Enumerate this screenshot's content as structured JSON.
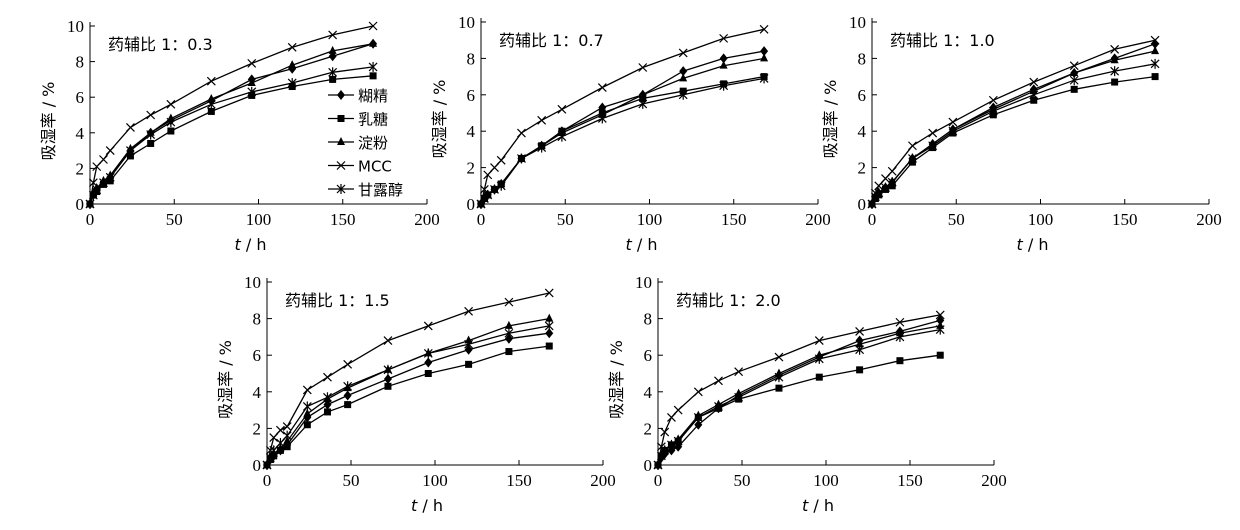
{
  "chart_data": [
    {
      "type": "line",
      "title": "药辅比 1：0.3",
      "xlabel_var": "t",
      "xlabel_unit": "/ h",
      "ylabel": "吸湿率 / %",
      "xlim": [
        0,
        200
      ],
      "ylim": [
        0,
        10
      ],
      "xticks": [
        0,
        50,
        100,
        150,
        200
      ],
      "yticks": [
        0,
        2,
        4,
        6,
        8,
        10
      ],
      "x": [
        0,
        2,
        4,
        8,
        12,
        24,
        36,
        48,
        72,
        96,
        120,
        144,
        168
      ],
      "legend": true,
      "series": [
        {
          "name": "糊精",
          "marker": "diamond",
          "values": [
            0,
            0.6,
            0.8,
            1.2,
            1.5,
            3.0,
            4.0,
            4.7,
            5.8,
            7.0,
            7.6,
            8.3,
            9.0
          ]
        },
        {
          "name": "乳糖",
          "marker": "square",
          "values": [
            0,
            0.5,
            0.7,
            1.1,
            1.3,
            2.7,
            3.4,
            4.1,
            5.2,
            6.1,
            6.6,
            7.0,
            7.2
          ]
        },
        {
          "name": "淀粉",
          "marker": "triangle",
          "values": [
            0,
            0.6,
            0.9,
            1.3,
            1.6,
            3.1,
            4.0,
            4.8,
            5.9,
            6.8,
            7.8,
            8.6,
            9.0
          ]
        },
        {
          "name": "MCC",
          "marker": "x",
          "values": [
            0,
            1.2,
            2.1,
            2.5,
            3.0,
            4.3,
            5.0,
            5.6,
            6.9,
            7.9,
            8.8,
            9.5,
            10.0
          ]
        },
        {
          "name": "甘露醇",
          "marker": "star",
          "values": [
            0,
            0.5,
            0.8,
            1.2,
            1.5,
            3.0,
            3.9,
            4.6,
            5.6,
            6.3,
            6.8,
            7.4,
            7.7
          ]
        }
      ]
    },
    {
      "type": "line",
      "title": "药辅比 1：0.7",
      "xlabel_var": "t",
      "xlabel_unit": "/ h",
      "ylabel": "吸湿率 / %",
      "xlim": [
        0,
        200
      ],
      "ylim": [
        0,
        10
      ],
      "xticks": [
        0,
        50,
        100,
        150,
        200
      ],
      "yticks": [
        0,
        2,
        4,
        6,
        8,
        10
      ],
      "x": [
        0,
        2,
        4,
        8,
        12,
        24,
        36,
        48,
        72,
        96,
        120,
        144,
        168
      ],
      "legend": false,
      "series": [
        {
          "name": "糊精",
          "marker": "diamond",
          "values": [
            0,
            0.3,
            0.5,
            0.8,
            1.1,
            2.5,
            3.2,
            4.0,
            5.3,
            6.0,
            7.3,
            8.0,
            8.4
          ]
        },
        {
          "name": "乳糖",
          "marker": "square",
          "values": [
            0,
            0.3,
            0.5,
            0.8,
            1.1,
            2.5,
            3.2,
            4.0,
            5.0,
            5.8,
            6.2,
            6.6,
            7.0
          ]
        },
        {
          "name": "淀粉",
          "marker": "triangle",
          "values": [
            0,
            0.3,
            0.5,
            0.8,
            1.1,
            2.5,
            3.2,
            3.9,
            4.9,
            6.0,
            6.9,
            7.6,
            8.0
          ]
        },
        {
          "name": "MCC",
          "marker": "x",
          "values": [
            0,
            0.8,
            1.6,
            2.0,
            2.4,
            3.9,
            4.6,
            5.2,
            6.4,
            7.5,
            8.3,
            9.1,
            9.6
          ]
        },
        {
          "name": "甘露醇",
          "marker": "star",
          "values": [
            0,
            0.3,
            0.5,
            0.8,
            1.0,
            2.5,
            3.1,
            3.7,
            4.7,
            5.5,
            6.0,
            6.5,
            6.9
          ]
        }
      ]
    },
    {
      "type": "line",
      "title": "药辅比 1：1.0",
      "xlabel_var": "t",
      "xlabel_unit": "/ h",
      "ylabel": "吸湿率 / %",
      "xlim": [
        0,
        200
      ],
      "ylim": [
        0,
        10
      ],
      "xticks": [
        0,
        50,
        100,
        150,
        200
      ],
      "yticks": [
        0,
        2,
        4,
        6,
        8,
        10
      ],
      "x": [
        0,
        2,
        4,
        8,
        12,
        24,
        36,
        48,
        72,
        96,
        120,
        144,
        168
      ],
      "legend": false,
      "series": [
        {
          "name": "糊精",
          "marker": "diamond",
          "values": [
            0,
            0.4,
            0.6,
            0.9,
            1.2,
            2.5,
            3.3,
            4.1,
            5.3,
            6.3,
            7.2,
            8.0,
            8.8
          ]
        },
        {
          "name": "乳糖",
          "marker": "square",
          "values": [
            0,
            0.3,
            0.5,
            0.8,
            1.0,
            2.3,
            3.1,
            3.9,
            4.9,
            5.7,
            6.3,
            6.7,
            7.0
          ]
        },
        {
          "name": "淀粉",
          "marker": "triangle",
          "values": [
            0,
            0.4,
            0.6,
            0.9,
            1.2,
            2.5,
            3.3,
            4.1,
            5.2,
            6.2,
            7.2,
            7.9,
            8.4
          ]
        },
        {
          "name": "MCC",
          "marker": "x",
          "values": [
            0,
            0.6,
            1.0,
            1.4,
            1.8,
            3.2,
            3.9,
            4.5,
            5.7,
            6.7,
            7.6,
            8.5,
            9.0
          ]
        },
        {
          "name": "甘露醇",
          "marker": "star",
          "values": [
            0,
            0.4,
            0.6,
            0.9,
            1.2,
            2.5,
            3.2,
            4.0,
            5.1,
            6.0,
            6.8,
            7.3,
            7.7
          ]
        }
      ]
    },
    {
      "type": "line",
      "title": "药辅比 1：1.5",
      "xlabel_var": "t",
      "xlabel_unit": "/ h",
      "ylabel": "吸湿率 / %",
      "xlim": [
        0,
        200
      ],
      "ylim": [
        0,
        10
      ],
      "xticks": [
        0,
        50,
        100,
        150,
        200
      ],
      "yticks": [
        0,
        2,
        4,
        6,
        8,
        10
      ],
      "x": [
        0,
        2,
        4,
        8,
        12,
        24,
        36,
        48,
        72,
        96,
        120,
        144,
        168
      ],
      "legend": false,
      "series": [
        {
          "name": "糊精",
          "marker": "diamond",
          "values": [
            0,
            0.3,
            0.5,
            0.8,
            1.1,
            2.6,
            3.3,
            3.8,
            4.7,
            5.6,
            6.3,
            6.9,
            7.2
          ]
        },
        {
          "name": "乳糖",
          "marker": "square",
          "values": [
            0,
            0.3,
            0.5,
            0.8,
            1.0,
            2.2,
            2.9,
            3.3,
            4.3,
            5.0,
            5.5,
            6.2,
            6.5
          ]
        },
        {
          "name": "淀粉",
          "marker": "triangle",
          "values": [
            0,
            0.3,
            0.6,
            0.9,
            1.3,
            2.8,
            3.6,
            4.2,
            5.2,
            6.1,
            6.8,
            7.6,
            8.0
          ]
        },
        {
          "name": "MCC",
          "marker": "x",
          "values": [
            0,
            0.8,
            1.5,
            1.9,
            2.1,
            4.1,
            4.8,
            5.5,
            6.8,
            7.6,
            8.4,
            8.9,
            9.4
          ]
        },
        {
          "name": "甘露醇",
          "marker": "star",
          "values": [
            0,
            0.4,
            0.8,
            1.2,
            1.6,
            3.2,
            3.7,
            4.3,
            5.2,
            6.1,
            6.6,
            7.2,
            7.6
          ]
        }
      ]
    },
    {
      "type": "line",
      "title": "药辅比 1：2.0",
      "xlabel_var": "t",
      "xlabel_unit": "/ h",
      "ylabel": "吸湿率 / %",
      "xlim": [
        0,
        200
      ],
      "ylim": [
        0,
        10
      ],
      "xticks": [
        0,
        50,
        100,
        150,
        200
      ],
      "yticks": [
        0,
        2,
        4,
        6,
        8,
        10
      ],
      "x": [
        0,
        2,
        4,
        8,
        12,
        24,
        36,
        48,
        72,
        96,
        120,
        144,
        168
      ],
      "legend": false,
      "series": [
        {
          "name": "糊精",
          "marker": "diamond",
          "values": [
            0,
            0.4,
            0.6,
            0.8,
            1.0,
            2.2,
            3.1,
            3.8,
            4.9,
            5.9,
            6.8,
            7.3,
            7.9
          ]
        },
        {
          "name": "乳糖",
          "marker": "square",
          "values": [
            0,
            0.5,
            0.8,
            1.1,
            1.3,
            2.6,
            3.1,
            3.6,
            4.2,
            4.8,
            5.2,
            5.7,
            6.0
          ]
        },
        {
          "name": "淀粉",
          "marker": "triangle",
          "values": [
            0,
            0.5,
            0.8,
            1.1,
            1.4,
            2.7,
            3.3,
            3.9,
            5.0,
            6.0,
            6.6,
            7.2,
            7.6
          ]
        },
        {
          "name": "MCC",
          "marker": "x",
          "values": [
            0,
            1.0,
            1.8,
            2.6,
            3.0,
            4.0,
            4.6,
            5.1,
            5.9,
            6.8,
            7.3,
            7.8,
            8.2
          ]
        },
        {
          "name": "甘露醇",
          "marker": "star",
          "values": [
            0,
            0.5,
            0.8,
            1.1,
            1.3,
            2.6,
            3.2,
            3.7,
            4.8,
            5.8,
            6.3,
            7.0,
            7.4
          ]
        }
      ]
    }
  ]
}
